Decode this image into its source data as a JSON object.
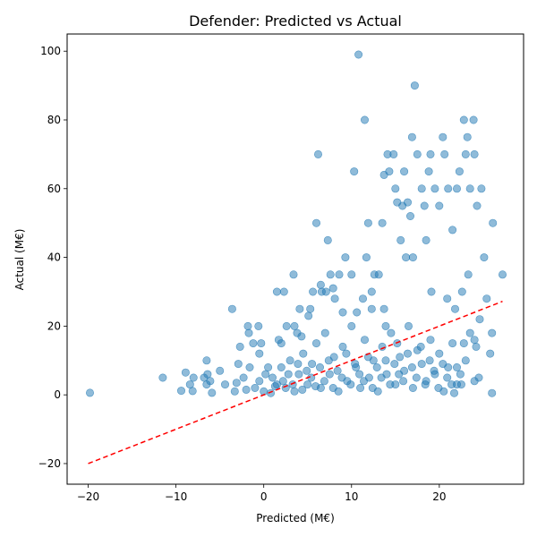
{
  "chart_data": {
    "type": "scatter",
    "title": "Defender: Predicted vs Actual",
    "xlabel": "Predicted (M€)",
    "ylabel": "Actual (M€)",
    "xlim": [
      -22.4,
      29.6
    ],
    "ylim": [
      -26,
      105
    ],
    "xticks": [
      -20,
      -10,
      0,
      10,
      20
    ],
    "yticks": [
      -20,
      0,
      20,
      40,
      60,
      80,
      100
    ],
    "grid": false,
    "point_color": "#1f77b4",
    "point_alpha": 0.5,
    "reference_line": {
      "from": [
        -20,
        -20
      ],
      "to": [
        27.2,
        27.2
      ],
      "color": "#ff0000",
      "style": "dashed"
    },
    "points": [
      [
        -19.8,
        0.6
      ],
      [
        -11.5,
        5
      ],
      [
        -9.4,
        1.2
      ],
      [
        -8.9,
        6.5
      ],
      [
        -8.4,
        3
      ],
      [
        -8.1,
        1.1
      ],
      [
        -8.0,
        5
      ],
      [
        -6.8,
        5
      ],
      [
        -6.5,
        3
      ],
      [
        -6.5,
        10
      ],
      [
        -6.4,
        6
      ],
      [
        -6.1,
        4
      ],
      [
        -5.9,
        0.6
      ],
      [
        -5,
        7
      ],
      [
        -4.4,
        3
      ],
      [
        -3.6,
        25
      ],
      [
        -3.3,
        1
      ],
      [
        -3.1,
        3.5
      ],
      [
        -2.9,
        9
      ],
      [
        -2.7,
        14
      ],
      [
        -2.3,
        5
      ],
      [
        -2,
        1.5
      ],
      [
        -1.8,
        20
      ],
      [
        -1.7,
        18
      ],
      [
        -1.6,
        8
      ],
      [
        -1.2,
        15
      ],
      [
        -0.6,
        20
      ],
      [
        -0.3,
        15
      ],
      [
        -0.5,
        12
      ],
      [
        1.5,
        30
      ],
      [
        2.3,
        30
      ],
      [
        1.7,
        16
      ],
      [
        2,
        15
      ],
      [
        2.6,
        20
      ],
      [
        3.4,
        35
      ],
      [
        3.5,
        20
      ],
      [
        3.8,
        18
      ],
      [
        4.3,
        17
      ],
      [
        4.1,
        25
      ],
      [
        5.1,
        23
      ],
      [
        5.3,
        25
      ],
      [
        5.6,
        30
      ],
      [
        6.0,
        50
      ],
      [
        6.2,
        70
      ],
      [
        6.6,
        30
      ],
      [
        7.1,
        30
      ],
      [
        7.3,
        45
      ],
      [
        7.6,
        35
      ],
      [
        8.6,
        35
      ],
      [
        9.3,
        40
      ],
      [
        10.0,
        35
      ],
      [
        10.3,
        65
      ],
      [
        10.8,
        99
      ],
      [
        11.5,
        80
      ],
      [
        11.7,
        40
      ],
      [
        11.9,
        50
      ],
      [
        12.3,
        30
      ],
      [
        13.1,
        35
      ],
      [
        13.5,
        50
      ],
      [
        13.7,
        64
      ],
      [
        14.1,
        70
      ],
      [
        14.3,
        65
      ],
      [
        14.8,
        70
      ],
      [
        15.0,
        60
      ],
      [
        15.2,
        56
      ],
      [
        15.8,
        55
      ],
      [
        16.0,
        65
      ],
      [
        16.4,
        56
      ],
      [
        16.7,
        52
      ],
      [
        16.9,
        75
      ],
      [
        17.2,
        90
      ],
      [
        17.0,
        40
      ],
      [
        17.5,
        70
      ],
      [
        18.0,
        60
      ],
      [
        18.3,
        55
      ],
      [
        18.8,
        65
      ],
      [
        19.0,
        70
      ],
      [
        19.5,
        60
      ],
      [
        20.0,
        55
      ],
      [
        20.4,
        75
      ],
      [
        20.6,
        70
      ],
      [
        21.0,
        60
      ],
      [
        21.5,
        48
      ],
      [
        22.0,
        60
      ],
      [
        22.3,
        65
      ],
      [
        22.8,
        80
      ],
      [
        23.0,
        70
      ],
      [
        23.2,
        75
      ],
      [
        23.5,
        60
      ],
      [
        23.9,
        80
      ],
      [
        24.0,
        70
      ],
      [
        24.3,
        55
      ],
      [
        24.8,
        60
      ],
      [
        25.1,
        40
      ],
      [
        25.4,
        28
      ],
      [
        26.1,
        50
      ],
      [
        27.2,
        35
      ],
      [
        25.8,
        12
      ],
      [
        26.0,
        18
      ],
      [
        26.0,
        0.5
      ],
      [
        24.5,
        5
      ],
      [
        24.0,
        16
      ],
      [
        24.2,
        14
      ],
      [
        24.0,
        4
      ],
      [
        23.5,
        18
      ],
      [
        23.0,
        10
      ],
      [
        22.8,
        15
      ],
      [
        22.0,
        8
      ],
      [
        22.5,
        3
      ],
      [
        21.7,
        0.5
      ],
      [
        12.6,
        35
      ],
      [
        11.3,
        28
      ],
      [
        9.0,
        24
      ],
      [
        8.1,
        28
      ],
      [
        7.9,
        31
      ],
      [
        6.5,
        32
      ],
      [
        10.6,
        24
      ],
      [
        12.3,
        25
      ],
      [
        13.7,
        25
      ],
      [
        15.6,
        45
      ],
      [
        16.2,
        40
      ],
      [
        18.5,
        45
      ],
      [
        19.1,
        30
      ],
      [
        20.9,
        28
      ],
      [
        21.8,
        25
      ],
      [
        22.6,
        30
      ],
      [
        23.3,
        35
      ],
      [
        24.6,
        22
      ],
      [
        13.9,
        20
      ],
      [
        15.2,
        15
      ],
      [
        0.5,
        8
      ],
      [
        1.0,
        5
      ],
      [
        1.5,
        3
      ],
      [
        2.0,
        8
      ],
      [
        2.5,
        2
      ],
      [
        3.0,
        10
      ],
      [
        3.5,
        1
      ],
      [
        4.0,
        6
      ],
      [
        4.5,
        12
      ],
      [
        5.0,
        3
      ],
      [
        5.5,
        9
      ],
      [
        6.0,
        15
      ],
      [
        6.5,
        2
      ],
      [
        7.0,
        18
      ],
      [
        7.5,
        6
      ],
      [
        8.0,
        11
      ],
      [
        8.5,
        1
      ],
      [
        9.0,
        14
      ],
      [
        9.5,
        4
      ],
      [
        10.0,
        20
      ],
      [
        10.5,
        8
      ],
      [
        11.0,
        2
      ],
      [
        11.5,
        16
      ],
      [
        12.0,
        5
      ],
      [
        12.5,
        10
      ],
      [
        13.0,
        1
      ],
      [
        13.5,
        14
      ],
      [
        14.0,
        6
      ],
      [
        14.5,
        18
      ],
      [
        15.0,
        3
      ],
      [
        15.5,
        11
      ],
      [
        16.0,
        7
      ],
      [
        16.5,
        20
      ],
      [
        17.0,
        2
      ],
      [
        17.5,
        13
      ],
      [
        18.0,
        9
      ],
      [
        18.5,
        4
      ],
      [
        19.0,
        16
      ],
      [
        19.5,
        6
      ],
      [
        20.0,
        12
      ],
      [
        20.5,
        1
      ],
      [
        21.0,
        8
      ],
      [
        21.5,
        15
      ],
      [
        22.0,
        3
      ],
      [
        -1.0,
        2
      ],
      [
        -0.5,
        4
      ],
      [
        0.0,
        1
      ],
      [
        0.2,
        6
      ],
      [
        0.8,
        0.5
      ],
      [
        1.3,
        2.5
      ],
      [
        2.2,
        4
      ],
      [
        2.8,
        6
      ],
      [
        3.3,
        3
      ],
      [
        3.9,
        9
      ],
      [
        4.4,
        1.5
      ],
      [
        4.9,
        7
      ],
      [
        5.4,
        5
      ],
      [
        5.9,
        2.5
      ],
      [
        6.4,
        8
      ],
      [
        6.9,
        4
      ],
      [
        7.4,
        10
      ],
      [
        7.9,
        2
      ],
      [
        8.4,
        7
      ],
      [
        8.9,
        5
      ],
      [
        9.4,
        12
      ],
      [
        9.9,
        3
      ],
      [
        10.4,
        9
      ],
      [
        10.9,
        6
      ],
      [
        11.4,
        4
      ],
      [
        11.9,
        11
      ],
      [
        12.4,
        2
      ],
      [
        12.9,
        8
      ],
      [
        13.4,
        5
      ],
      [
        13.9,
        10
      ],
      [
        14.4,
        3
      ],
      [
        14.9,
        9
      ],
      [
        15.4,
        6
      ],
      [
        15.9,
        4
      ],
      [
        16.4,
        12
      ],
      [
        16.9,
        8
      ],
      [
        17.4,
        5
      ],
      [
        17.9,
        14
      ],
      [
        18.4,
        3
      ],
      [
        18.9,
        10
      ],
      [
        19.4,
        7
      ],
      [
        19.9,
        2
      ],
      [
        20.4,
        9
      ],
      [
        20.9,
        5
      ],
      [
        21.4,
        3
      ],
      [
        22.4,
        6
      ]
    ]
  }
}
